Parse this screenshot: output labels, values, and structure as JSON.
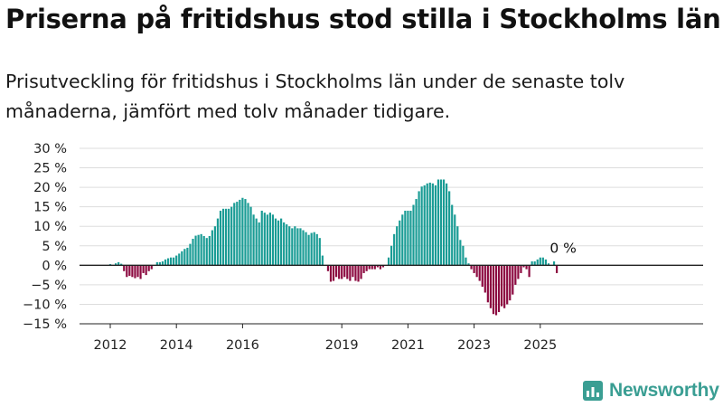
{
  "headline": "Priserna på fritidshus stod stilla i Stockholms län",
  "subtitle": "Prisutveckling för fritidshus i Stockholms län under de senaste tolv månaderna, jämfört med tolv månader tidigare.",
  "logo": {
    "text": "Newsworthy",
    "icon": "newsworthy-logo-icon",
    "color": "#3a9e93"
  },
  "colors": {
    "positive": "#1a9c95",
    "negative": "#8c0a40",
    "grid": "#dddddd",
    "axis": "#222222"
  },
  "chart_data": {
    "type": "bar",
    "title": "Priserna på fritidshus stod stilla i Stockholms län",
    "xlabel": "",
    "ylabel": "",
    "ylim": [
      -15,
      30
    ],
    "yticks": [
      30,
      25,
      20,
      15,
      10,
      5,
      0,
      -5,
      -10,
      -15
    ],
    "ytick_labels": [
      "30 %",
      "25 %",
      "20 %",
      "15 %",
      "10 %",
      "5 %",
      "0 %",
      "−5 %",
      "−10 %",
      "−15 %"
    ],
    "xticks": [
      {
        "label": "2012",
        "date": "2012-01"
      },
      {
        "label": "2014",
        "date": "2014-01"
      },
      {
        "label": "2016",
        "date": "2016-01"
      },
      {
        "label": "2019",
        "date": "2019-01"
      },
      {
        "label": "2021",
        "date": "2021-01"
      },
      {
        "label": "2023",
        "date": "2023-01"
      },
      {
        "label": "2025",
        "date": "2025-01"
      }
    ],
    "grid": true,
    "legend": "none",
    "annotation": {
      "text": "0 %",
      "date": "2025-08",
      "value": 0
    },
    "series": [
      {
        "points": [
          [
            "2012-01",
            0.3
          ],
          [
            "2012-02",
            0.0
          ],
          [
            "2012-03",
            0.5
          ],
          [
            "2012-04",
            0.8
          ],
          [
            "2012-05",
            0.4
          ],
          [
            "2012-06",
            -1.5
          ],
          [
            "2012-07",
            -3.0
          ],
          [
            "2012-08",
            -2.7
          ],
          [
            "2012-09",
            -3.0
          ],
          [
            "2012-10",
            -3.3
          ],
          [
            "2012-11",
            -3.0
          ],
          [
            "2012-12",
            -3.5
          ],
          [
            "2013-01",
            -2.0
          ],
          [
            "2013-02",
            -2.5
          ],
          [
            "2013-03",
            -1.5
          ],
          [
            "2013-04",
            -1.0
          ],
          [
            "2013-05",
            0.0
          ],
          [
            "2013-06",
            0.8
          ],
          [
            "2013-07",
            0.8
          ],
          [
            "2013-08",
            1.0
          ],
          [
            "2013-09",
            1.5
          ],
          [
            "2013-10",
            1.8
          ],
          [
            "2013-11",
            2.0
          ],
          [
            "2013-12",
            2.0
          ],
          [
            "2014-01",
            2.5
          ],
          [
            "2014-02",
            3.0
          ],
          [
            "2014-03",
            3.6
          ],
          [
            "2014-04",
            4.2
          ],
          [
            "2014-05",
            4.5
          ],
          [
            "2014-06",
            5.5
          ],
          [
            "2014-07",
            6.8
          ],
          [
            "2014-08",
            7.6
          ],
          [
            "2014-09",
            7.8
          ],
          [
            "2014-10",
            8.0
          ],
          [
            "2014-11",
            7.5
          ],
          [
            "2014-12",
            7.0
          ],
          [
            "2015-01",
            7.5
          ],
          [
            "2015-02",
            9.0
          ],
          [
            "2015-03",
            10.0
          ],
          [
            "2015-04",
            12.0
          ],
          [
            "2015-05",
            14.0
          ],
          [
            "2015-06",
            14.5
          ],
          [
            "2015-07",
            14.5
          ],
          [
            "2015-08",
            14.5
          ],
          [
            "2015-09",
            15.0
          ],
          [
            "2015-10",
            16.0
          ],
          [
            "2015-11",
            16.3
          ],
          [
            "2015-12",
            16.8
          ],
          [
            "2016-01",
            17.3
          ],
          [
            "2016-02",
            17.0
          ],
          [
            "2016-03",
            16.0
          ],
          [
            "2016-04",
            15.0
          ],
          [
            "2016-05",
            13.0
          ],
          [
            "2016-06",
            12.0
          ],
          [
            "2016-07",
            11.0
          ],
          [
            "2016-08",
            14.0
          ],
          [
            "2016-09",
            13.5
          ],
          [
            "2016-10",
            13.0
          ],
          [
            "2016-11",
            13.5
          ],
          [
            "2016-12",
            13.0
          ],
          [
            "2017-01",
            12.0
          ],
          [
            "2017-02",
            11.5
          ],
          [
            "2017-03",
            12.0
          ],
          [
            "2017-04",
            11.0
          ],
          [
            "2017-05",
            10.5
          ],
          [
            "2017-06",
            10.0
          ],
          [
            "2017-07",
            9.5
          ],
          [
            "2017-08",
            10.0
          ],
          [
            "2017-09",
            9.5
          ],
          [
            "2017-10",
            9.5
          ],
          [
            "2017-11",
            9.0
          ],
          [
            "2017-12",
            8.5
          ],
          [
            "2018-01",
            7.8
          ],
          [
            "2018-02",
            8.3
          ],
          [
            "2018-03",
            8.5
          ],
          [
            "2018-04",
            8.0
          ],
          [
            "2018-05",
            7.0
          ],
          [
            "2018-06",
            2.5
          ],
          [
            "2018-07",
            0.0
          ],
          [
            "2018-08",
            -1.5
          ],
          [
            "2018-09",
            -4.2
          ],
          [
            "2018-10",
            -4.0
          ],
          [
            "2018-11",
            -3.0
          ],
          [
            "2018-12",
            -3.5
          ],
          [
            "2019-01",
            -3.5
          ],
          [
            "2019-02",
            -3.0
          ],
          [
            "2019-03",
            -3.5
          ],
          [
            "2019-04",
            -4.0
          ],
          [
            "2019-05",
            -3.0
          ],
          [
            "2019-06",
            -4.0
          ],
          [
            "2019-07",
            -4.2
          ],
          [
            "2019-08",
            -3.5
          ],
          [
            "2019-09",
            -2.0
          ],
          [
            "2019-10",
            -1.5
          ],
          [
            "2019-11",
            -1.0
          ],
          [
            "2019-12",
            -1.0
          ],
          [
            "2020-01",
            -1.0
          ],
          [
            "2020-02",
            -0.5
          ],
          [
            "2020-03",
            -1.0
          ],
          [
            "2020-04",
            -0.5
          ],
          [
            "2020-05",
            0.0
          ],
          [
            "2020-06",
            2.0
          ],
          [
            "2020-07",
            5.0
          ],
          [
            "2020-08",
            8.0
          ],
          [
            "2020-09",
            10.0
          ],
          [
            "2020-10",
            11.5
          ],
          [
            "2020-11",
            13.0
          ],
          [
            "2020-12",
            14.0
          ],
          [
            "2021-01",
            14.0
          ],
          [
            "2021-02",
            14.0
          ],
          [
            "2021-03",
            15.5
          ],
          [
            "2021-04",
            17.0
          ],
          [
            "2021-05",
            19.0
          ],
          [
            "2021-06",
            20.2
          ],
          [
            "2021-07",
            20.5
          ],
          [
            "2021-08",
            21.0
          ],
          [
            "2021-09",
            21.2
          ],
          [
            "2021-10",
            21.0
          ],
          [
            "2021-11",
            20.5
          ],
          [
            "2021-12",
            22.0
          ],
          [
            "2022-01",
            22.0
          ],
          [
            "2022-02",
            22.0
          ],
          [
            "2022-03",
            21.0
          ],
          [
            "2022-04",
            19.0
          ],
          [
            "2022-05",
            15.5
          ],
          [
            "2022-06",
            13.0
          ],
          [
            "2022-07",
            10.0
          ],
          [
            "2022-08",
            6.5
          ],
          [
            "2022-09",
            5.0
          ],
          [
            "2022-10",
            2.0
          ],
          [
            "2022-11",
            0.5
          ],
          [
            "2022-12",
            -1.0
          ],
          [
            "2023-01",
            -2.0
          ],
          [
            "2023-02",
            -3.0
          ],
          [
            "2023-03",
            -4.0
          ],
          [
            "2023-04",
            -5.5
          ],
          [
            "2023-05",
            -7.0
          ],
          [
            "2023-06",
            -9.5
          ],
          [
            "2023-07",
            -11.0
          ],
          [
            "2023-08",
            -12.5
          ],
          [
            "2023-09",
            -12.8
          ],
          [
            "2023-10",
            -12.0
          ],
          [
            "2023-11",
            -10.5
          ],
          [
            "2023-12",
            -11.0
          ],
          [
            "2024-01",
            -10.0
          ],
          [
            "2024-02",
            -9.0
          ],
          [
            "2024-03",
            -7.5
          ],
          [
            "2024-04",
            -5.0
          ],
          [
            "2024-05",
            -3.5
          ],
          [
            "2024-06",
            -2.0
          ],
          [
            "2024-07",
            -0.5
          ],
          [
            "2024-08",
            -1.0
          ],
          [
            "2024-09",
            -3.0
          ],
          [
            "2024-10",
            1.0
          ],
          [
            "2024-11",
            1.0
          ],
          [
            "2024-12",
            1.5
          ],
          [
            "2025-01",
            2.0
          ],
          [
            "2025-02",
            2.0
          ],
          [
            "2025-03",
            1.5
          ],
          [
            "2025-04",
            0.5
          ],
          [
            "2025-05",
            0.0
          ],
          [
            "2025-06",
            1.0
          ],
          [
            "2025-07",
            -2.0
          ],
          [
            "2025-08",
            0.0
          ]
        ]
      }
    ]
  }
}
